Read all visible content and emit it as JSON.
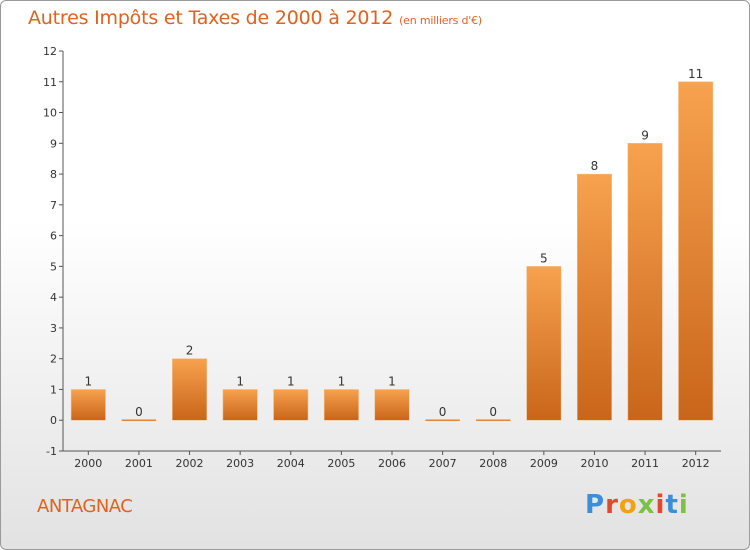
{
  "header": {
    "title": "Autres Impôts et Taxes de 2000 à 2012",
    "unit": "(en milliers d'€)"
  },
  "footer": {
    "town": "ANTAGNAC",
    "logo": "Proxiti",
    "logo_colors": [
      "#3a8fd9",
      "#e8462a",
      "#f2a20d",
      "#7cc242",
      "#e8462a",
      "#3a8fd9",
      "#7cc242"
    ]
  },
  "chart_data": {
    "type": "bar",
    "title": "Autres Impôts et Taxes de 2000 à 2012",
    "xlabel": "",
    "ylabel": "",
    "categories": [
      "2000",
      "2001",
      "2002",
      "2003",
      "2004",
      "2005",
      "2006",
      "2007",
      "2008",
      "2009",
      "2010",
      "2011",
      "2012"
    ],
    "values": [
      1,
      0,
      2,
      1,
      1,
      1,
      1,
      0,
      0,
      5,
      8,
      9,
      11
    ],
    "ylim": [
      -1,
      12
    ],
    "yticks": [
      -1,
      0,
      1,
      2,
      3,
      4,
      5,
      6,
      7,
      8,
      9,
      10,
      11,
      12
    ],
    "grid": false,
    "bar_color": "#e8832f"
  }
}
